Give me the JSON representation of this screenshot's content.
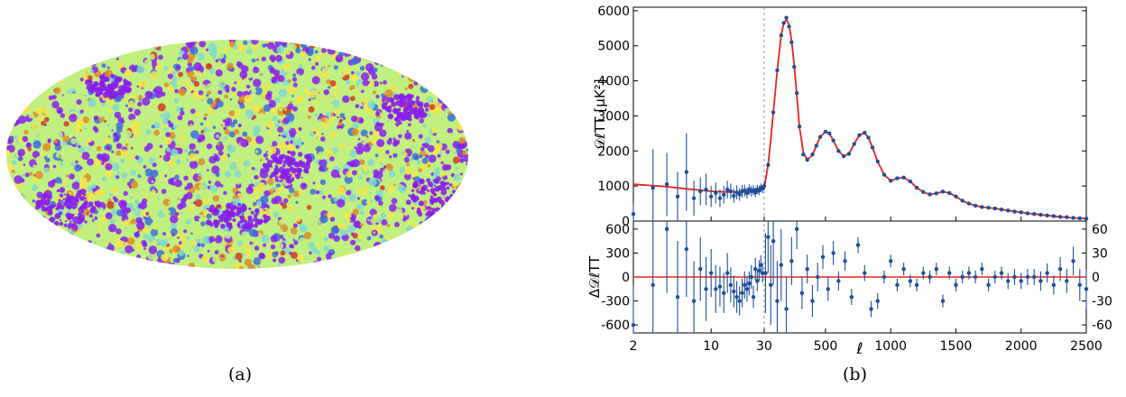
{
  "colors": {
    "curve": "#e8231e",
    "points": "#1f4f9a",
    "frame": "#000000",
    "divider": "#9a9a9a",
    "map_palette": [
      "#8a1ef0",
      "#3a6fe0",
      "#7fd9d0",
      "#bff080",
      "#f2e64a",
      "#e08a2a",
      "#d23a1e"
    ]
  },
  "panel_a": {
    "caption": "(a)",
    "icon": "sky-map-mollweide"
  },
  "panel_b": {
    "caption": "(b)"
  },
  "chart_data": [
    {
      "type": "scatter",
      "panel": "top",
      "ylabel": "𝒟ℓTT [μK²]",
      "ylim": [
        0,
        6100
      ],
      "yticks": [
        0,
        1000,
        2000,
        3000,
        4000,
        5000,
        6000
      ],
      "x_scale": "log below 30, linear above 30",
      "xlim": [
        2,
        2500
      ],
      "xticks": [
        "2",
        "10",
        "30",
        "500",
        "1000",
        "1500",
        "2000",
        "2500"
      ],
      "xsplit": 30,
      "series": [
        {
          "kind": "model-curve",
          "x": [
            2,
            4,
            6,
            8,
            10,
            14,
            18,
            22,
            26,
            30,
            40,
            60,
            80,
            100,
            130,
            160,
            180,
            200,
            220,
            240,
            260,
            280,
            300,
            330,
            360,
            400,
            430,
            460,
            500,
            530,
            560,
            600,
            640,
            680,
            720,
            760,
            800,
            830,
            860,
            900,
            950,
            1000,
            1050,
            1100,
            1150,
            1200,
            1250,
            1300,
            1350,
            1400,
            1450,
            1500,
            1550,
            1600,
            1650,
            1700,
            1800,
            1900,
            2000,
            2100,
            2200,
            2300,
            2400,
            2500
          ],
          "y": [
            1050,
            980,
            920,
            880,
            850,
            830,
            830,
            850,
            880,
            920,
            1150,
            1600,
            2300,
            3100,
            4300,
            5300,
            5650,
            5750,
            5600,
            5150,
            4450,
            3600,
            2700,
            1950,
            1750,
            1880,
            2150,
            2400,
            2550,
            2500,
            2300,
            2000,
            1850,
            1920,
            2200,
            2450,
            2520,
            2380,
            2100,
            1700,
            1320,
            1150,
            1220,
            1240,
            1130,
            950,
            830,
            760,
            790,
            840,
            800,
            700,
            580,
            500,
            440,
            400,
            360,
            300,
            250,
            200,
            160,
            120,
            90,
            70
          ]
        },
        {
          "kind": "binned-points",
          "x": [
            2,
            3,
            4,
            5,
            6,
            7,
            8,
            9,
            10,
            11,
            12,
            13,
            14,
            15,
            16,
            17,
            18,
            19,
            20,
            21,
            22,
            23,
            24,
            25,
            26,
            27,
            28,
            29,
            30,
            60,
            100,
            130,
            160,
            180,
            200,
            220,
            240,
            260,
            280,
            300,
            330,
            360,
            400,
            430,
            460,
            500,
            530,
            560,
            600,
            640,
            680,
            720,
            760,
            800,
            830,
            860,
            900,
            950,
            1000,
            1050,
            1100,
            1150,
            1200,
            1250,
            1300,
            1350,
            1400,
            1450,
            1500,
            1550,
            1600,
            1650,
            1700,
            1750,
            1800,
            1850,
            1900,
            1950,
            2000,
            2050,
            2100,
            2150,
            2200,
            2250,
            2300,
            2350,
            2400,
            2450,
            2500
          ],
          "y": [
            200,
            950,
            1050,
            700,
            1400,
            650,
            850,
            900,
            700,
            800,
            650,
            750,
            900,
            850,
            720,
            820,
            760,
            850,
            870,
            800,
            900,
            850,
            880,
            820,
            900,
            870,
            950,
            920,
            1000,
            1600,
            3100,
            4300,
            5300,
            5650,
            5800,
            5550,
            5100,
            4400,
            3650,
            2700,
            1900,
            1750,
            1900,
            2150,
            2400,
            2550,
            2500,
            2300,
            2000,
            1850,
            1920,
            2200,
            2450,
            2520,
            2380,
            2100,
            1700,
            1320,
            1150,
            1220,
            1240,
            1130,
            950,
            830,
            760,
            790,
            840,
            800,
            700,
            580,
            500,
            440,
            400,
            380,
            360,
            330,
            300,
            270,
            250,
            220,
            200,
            180,
            160,
            140,
            120,
            110,
            90,
            80,
            70
          ],
          "err": [
            300,
            1100,
            900,
            700,
            1100,
            500,
            400,
            450,
            300,
            300,
            250,
            250,
            250,
            220,
            200,
            200,
            180,
            180,
            170,
            160,
            150,
            150,
            140,
            140,
            130,
            130,
            120,
            120,
            110,
            60,
            50,
            50,
            50,
            50,
            50,
            50,
            50,
            40,
            40,
            40,
            30,
            30,
            30,
            30,
            30,
            30,
            30,
            30,
            30,
            30,
            30,
            30,
            30,
            30,
            30,
            30,
            30,
            30,
            30,
            30,
            30,
            30,
            30,
            30,
            30,
            30,
            30,
            30,
            30,
            30,
            30,
            30,
            30,
            30,
            30,
            30,
            30,
            30,
            30,
            30,
            30,
            30,
            30,
            30,
            30,
            30,
            30,
            30,
            30
          ]
        }
      ]
    },
    {
      "type": "scatter",
      "panel": "bottom",
      "ylabel": "Δ𝒟ℓTT",
      "ylim_left": [
        -700,
        700
      ],
      "yticks_left": [
        -600,
        -300,
        0,
        300,
        600
      ],
      "yticks_right": [
        -60,
        -30,
        0,
        30,
        60
      ],
      "xlabel": "ℓ",
      "xlim": [
        2,
        2500
      ],
      "xticks": [
        "2",
        "10",
        "30",
        "500",
        "1000",
        "1500",
        "2000",
        "2500"
      ],
      "series": [
        {
          "kind": "residual-points-low-ell",
          "x": [
            2,
            3,
            4,
            5,
            6,
            7,
            8,
            9,
            10,
            11,
            12,
            13,
            14,
            15,
            16,
            17,
            18,
            19,
            20,
            21,
            22,
            23,
            24,
            25,
            26,
            27,
            28,
            29
          ],
          "y": [
            -600,
            -100,
            600,
            -250,
            350,
            -300,
            100,
            -150,
            50,
            -150,
            -120,
            -200,
            50,
            -100,
            -180,
            -250,
            -300,
            -200,
            -100,
            -150,
            -80,
            0,
            -250,
            100,
            -50,
            80,
            150,
            50
          ],
          "err": [
            500,
            900,
            800,
            700,
            600,
            500,
            400,
            400,
            300,
            300,
            250,
            250,
            250,
            220,
            200,
            200,
            180,
            180,
            170,
            160,
            150,
            150,
            140,
            140,
            130,
            130,
            120,
            120
          ]
        },
        {
          "kind": "residual-points-high-ell",
          "x": [
            40,
            60,
            80,
            100,
            130,
            160,
            200,
            240,
            280,
            320,
            360,
            400,
            440,
            480,
            520,
            560,
            600,
            650,
            700,
            750,
            800,
            850,
            900,
            950,
            1000,
            1050,
            1100,
            1150,
            1200,
            1250,
            1300,
            1350,
            1400,
            1450,
            1500,
            1550,
            1600,
            1650,
            1700,
            1750,
            1800,
            1850,
            1900,
            1950,
            2000,
            2050,
            2100,
            2150,
            2200,
            2250,
            2300,
            2350,
            2400,
            2450,
            2500
          ],
          "y": [
            5,
            50,
            -10,
            45,
            -30,
            15,
            -40,
            20,
            60,
            -20,
            10,
            -30,
            0,
            25,
            -15,
            30,
            -5,
            20,
            -25,
            40,
            5,
            -40,
            -30,
            0,
            20,
            -10,
            10,
            -5,
            -10,
            5,
            0,
            10,
            -30,
            5,
            -10,
            0,
            5,
            0,
            10,
            -10,
            0,
            5,
            -5,
            0,
            -5,
            0,
            0,
            -5,
            5,
            -10,
            10,
            -5,
            20,
            -10,
            -15
          ],
          "err": [
            50,
            45,
            50,
            55,
            50,
            45,
            40,
            30,
            25,
            20,
            18,
            20,
            18,
            15,
            15,
            15,
            12,
            12,
            10,
            10,
            10,
            10,
            10,
            8,
            8,
            8,
            8,
            8,
            8,
            8,
            8,
            8,
            8,
            8,
            8,
            8,
            8,
            8,
            8,
            8,
            8,
            8,
            10,
            10,
            10,
            10,
            10,
            12,
            12,
            12,
            15,
            15,
            18,
            20,
            25
          ]
        }
      ]
    }
  ]
}
